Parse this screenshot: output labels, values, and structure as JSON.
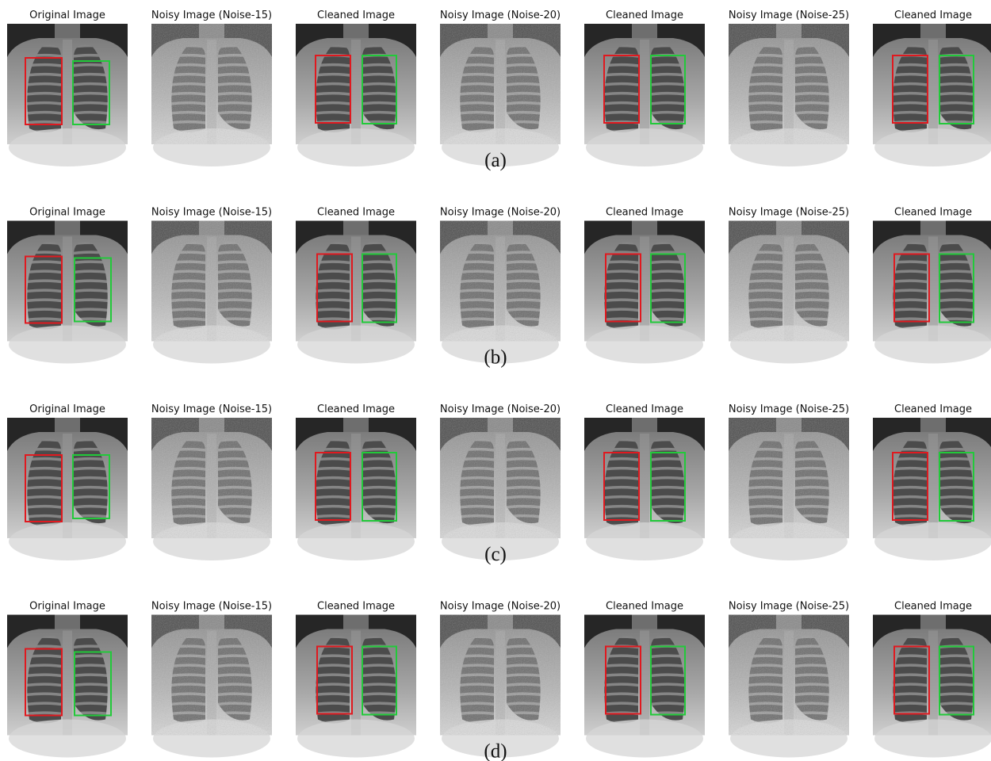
{
  "rows": [
    {
      "label": "(a)",
      "panels": [
        {
          "title": "Original Image"
        },
        {
          "title": "Noisy Image (Noise-15)"
        },
        {
          "title": "Cleaned Image"
        },
        {
          "title": "Noisy Image (Noise-20)"
        },
        {
          "title": "Cleaned Image"
        },
        {
          "title": "Noisy Image (Noise-25)"
        },
        {
          "title": "Cleaned Image"
        }
      ]
    },
    {
      "label": "(b)",
      "panels": [
        {
          "title": "Original Image"
        },
        {
          "title": "Noisy Image (Noise-15)"
        },
        {
          "title": "Cleaned Image"
        },
        {
          "title": "Noisy Image (Noise-20)"
        },
        {
          "title": "Cleaned Image"
        },
        {
          "title": "Noisy Image (Noise-25)"
        },
        {
          "title": "Cleaned Image"
        }
      ]
    },
    {
      "label": "(c)",
      "panels": [
        {
          "title": "Original Image"
        },
        {
          "title": "Noisy Image (Noise-15)"
        },
        {
          "title": "Cleaned Image"
        },
        {
          "title": "Noisy Image (Noise-20)"
        },
        {
          "title": "Cleaned Image"
        },
        {
          "title": "Noisy Image (Noise-25)"
        },
        {
          "title": "Cleaned Image"
        }
      ]
    },
    {
      "label": "(d)",
      "panels": [
        {
          "title": "Original Image"
        },
        {
          "title": "Noisy Image (Noise-15)"
        },
        {
          "title": "Cleaned Image"
        },
        {
          "title": "Noisy Image (Noise-20)"
        },
        {
          "title": "Cleaned Image"
        },
        {
          "title": "Noisy Image (Noise-25)"
        },
        {
          "title": "Cleaned Image"
        }
      ]
    }
  ]
}
